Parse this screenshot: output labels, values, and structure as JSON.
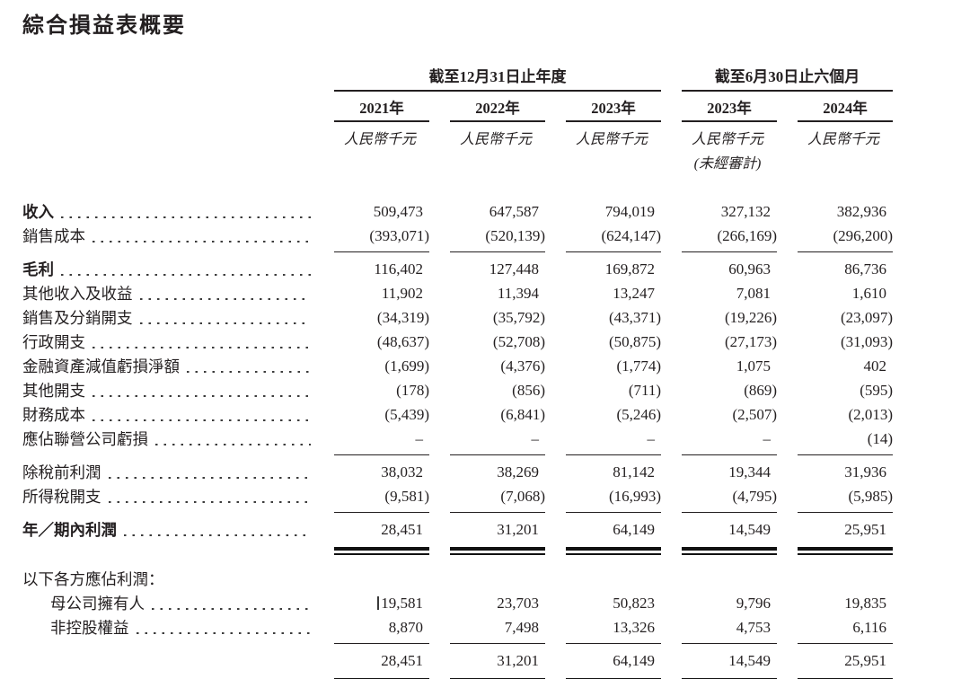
{
  "page_title": "綜合損益表概要",
  "colors": {
    "ink": "#231f20",
    "background": "#ffffff"
  },
  "table": {
    "col_groups": [
      {
        "label": "截至12月31日止年度"
      },
      {
        "label": "截至6月30日止六個月"
      }
    ],
    "columns": [
      {
        "year": "2021年",
        "unit": "人民幣千元",
        "note": ""
      },
      {
        "year": "2022年",
        "unit": "人民幣千元",
        "note": ""
      },
      {
        "year": "2023年",
        "unit": "人民幣千元",
        "note": ""
      },
      {
        "year": "2023年",
        "unit": "人民幣千元",
        "note": "(未經審計)"
      },
      {
        "year": "2024年",
        "unit": "人民幣千元",
        "note": ""
      }
    ],
    "rows": [
      {
        "label": "收入",
        "values": [
          "509,473",
          "647,587",
          "794,019",
          "327,132",
          "382,936"
        ]
      },
      {
        "label": "銷售成本",
        "values": [
          "(393,071)",
          "(520,139)",
          "(624,147)",
          "(266,169)",
          "(296,200)"
        ]
      },
      {
        "label": "毛利",
        "values": [
          "116,402",
          "127,448",
          "169,872",
          "60,963",
          "86,736"
        ]
      },
      {
        "label": "其他收入及收益",
        "values": [
          "11,902",
          "11,394",
          "13,247",
          "7,081",
          "1,610"
        ]
      },
      {
        "label": "銷售及分銷開支",
        "values": [
          "(34,319)",
          "(35,792)",
          "(43,371)",
          "(19,226)",
          "(23,097)"
        ]
      },
      {
        "label": "行政開支",
        "values": [
          "(48,637)",
          "(52,708)",
          "(50,875)",
          "(27,173)",
          "(31,093)"
        ]
      },
      {
        "label": "金融資產減值虧損淨額",
        "values": [
          "(1,699)",
          "(4,376)",
          "(1,774)",
          "1,075",
          "402"
        ]
      },
      {
        "label": "其他開支",
        "values": [
          "(178)",
          "(856)",
          "(711)",
          "(869)",
          "(595)"
        ]
      },
      {
        "label": "財務成本",
        "values": [
          "(5,439)",
          "(6,841)",
          "(5,246)",
          "(2,507)",
          "(2,013)"
        ]
      },
      {
        "label": "應佔聯營公司虧損",
        "values": [
          "–",
          "–",
          "–",
          "–",
          "(14)"
        ]
      },
      {
        "label": "除稅前利潤",
        "values": [
          "38,032",
          "38,269",
          "81,142",
          "19,344",
          "31,936"
        ]
      },
      {
        "label": "所得稅開支",
        "values": [
          "(9,581)",
          "(7,068)",
          "(16,993)",
          "(4,795)",
          "(5,985)"
        ]
      },
      {
        "label": "年／期內利潤",
        "values": [
          "28,451",
          "31,201",
          "64,149",
          "14,549",
          "25,951"
        ]
      },
      {
        "label": "以下各方應佔利潤：",
        "values": [
          "",
          "",
          "",
          "",
          ""
        ]
      },
      {
        "label": "母公司擁有人",
        "values": [
          "19,581",
          "23,703",
          "50,823",
          "9,796",
          "19,835"
        ]
      },
      {
        "label": "非控股權益",
        "values": [
          "8,870",
          "7,498",
          "13,326",
          "4,753",
          "6,116"
        ]
      },
      {
        "label": "",
        "values": [
          "28,451",
          "31,201",
          "64,149",
          "14,549",
          "25,951"
        ]
      }
    ]
  }
}
